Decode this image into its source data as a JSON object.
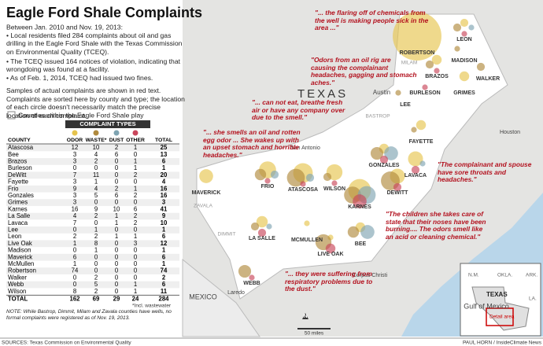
{
  "title": "Eagle Ford Shale Complaints",
  "intro": "Between Jan. 2010 and Nov. 19, 2013:",
  "bullets": [
    "• Local residents filed 284 complaints about oil and gas drilling in the Eagle Ford Shale with the Texas Commission on Environmental Quality (TCEQ).",
    "• The TCEQ issued 164 notices of violation, indicating that wrongdoing was found at a facility.",
    "• As of Feb. 1, 2014, TCEQ had issued two fines."
  ],
  "note1": "Samples of actual complaints are shown in red text.",
  "note2": "Complaints are sorted here by county and type; the location of each circle doesn't necessarily match the precise location of each complaint.",
  "legend": "Counties within the Eagle Ford Shale play",
  "table": {
    "group_header": "COMPLAINT TYPES",
    "type_colors": [
      "#e6c44e",
      "#b08a3e",
      "#7fa4b2",
      "#c9465b"
    ],
    "columns": [
      "COUNTY",
      "ODOR",
      "WASTE*",
      "DUST",
      "OTHER",
      "TOTAL"
    ],
    "rows": [
      [
        "Atascosa",
        12,
        10,
        2,
        1,
        25
      ],
      [
        "Bee",
        3,
        4,
        6,
        0,
        13
      ],
      [
        "Brazos",
        3,
        2,
        0,
        1,
        6
      ],
      [
        "Burleson",
        0,
        0,
        0,
        1,
        1
      ],
      [
        "DeWitt",
        7,
        11,
        0,
        2,
        20
      ],
      [
        "Fayette",
        3,
        1,
        0,
        0,
        4
      ],
      [
        "Frio",
        9,
        4,
        2,
        1,
        16
      ],
      [
        "Gonzales",
        3,
        5,
        6,
        2,
        16
      ],
      [
        "Grimes",
        3,
        0,
        0,
        0,
        3
      ],
      [
        "Karnes",
        16,
        9,
        10,
        6,
        41
      ],
      [
        "La Salle",
        4,
        2,
        1,
        2,
        9
      ],
      [
        "Lavaca",
        7,
        0,
        1,
        2,
        10
      ],
      [
        "Lee",
        0,
        1,
        0,
        0,
        1
      ],
      [
        "Leon",
        2,
        2,
        1,
        1,
        6
      ],
      [
        "Live Oak",
        1,
        8,
        0,
        3,
        12
      ],
      [
        "Madison",
        0,
        1,
        0,
        0,
        1
      ],
      [
        "Maverick",
        6,
        0,
        0,
        0,
        6
      ],
      [
        "McMullen",
        1,
        0,
        0,
        0,
        1
      ],
      [
        "Robertson",
        74,
        0,
        0,
        0,
        74
      ],
      [
        "Walker",
        0,
        2,
        0,
        0,
        2
      ],
      [
        "Webb",
        0,
        5,
        0,
        1,
        6
      ],
      [
        "Wilson",
        8,
        2,
        0,
        1,
        11
      ]
    ],
    "total_row": [
      "TOTAL",
      162,
      69,
      29,
      24,
      284
    ]
  },
  "footnote": "*Incl. wastewater",
  "note": "NOTE: While Bastrop, Dimmit, Milam and Zavala counties have wells, no formal complaints were registered as of Nov. 19, 2013.",
  "source": "SOURCES: Texas Commission on Environmental Quality",
  "credit": "PAUL HORN / InsideClimate News",
  "map": {
    "state_label": "TEXAS",
    "county_labels": [
      "ATASCOSA",
      "BEE",
      "BRAZOS",
      "BURLESON",
      "DEWITT",
      "FAYETTE",
      "FRIO",
      "GONZALES",
      "GRIMES",
      "KARNES",
      "LA SALLE",
      "LAVACA",
      "LEE",
      "LEON",
      "LIVE OAK",
      "MADISON",
      "MAVERICK",
      "MCMULLEN",
      "ROBERTSON",
      "WALKER",
      "WEBB",
      "WILSON"
    ],
    "other_counties": [
      "ZAVALA",
      "DIMMIT",
      "MILAM",
      "BASTROP"
    ],
    "places": [
      "Austin",
      "San Antonio",
      "Houston",
      "Laredo",
      "Corpus Christi",
      "MEXICO",
      "Gulf of Mexico"
    ],
    "quotes": [
      "\"... the flaring off of chemicals from the well is making people sick in the area ...\"",
      "\"Odors from an oil rig are causing the complainant headaches, gagging and stomach aches.\"",
      "\"... can not eat, breathe fresh air or have any company over due to the smell.\"",
      "\"... she smells an oil and rotten egg odor ... She wakes up with an upset stomach and horrible headaches.\"",
      "\"The complainant and spouse have sore throats and headaches.\"",
      "\"The children she takes care of state that their noses have been burning.... The odors smell like an acid or cleaning chemical.\"",
      "\"... they were suffering from respiratory problems due to the dust.\""
    ],
    "north": "N",
    "scale": "50 miles",
    "inset": {
      "labels": [
        "N.M.",
        "OKLA.",
        "ARK.",
        "LA."
      ],
      "state": "TEXAS",
      "detail": "Detail area"
    }
  }
}
